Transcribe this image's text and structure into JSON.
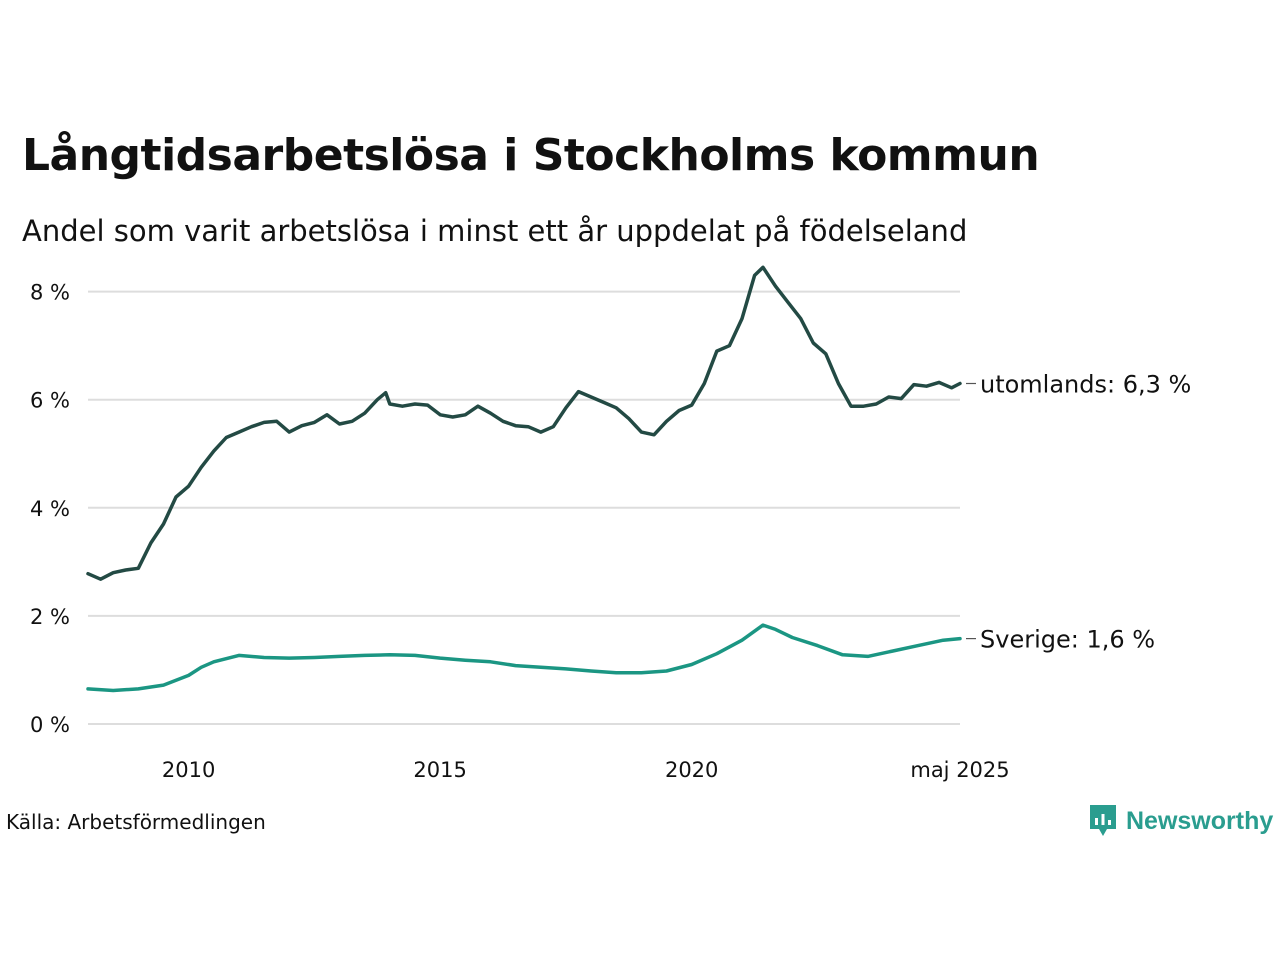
{
  "title": "Långtidsarbetslösa i Stockholms kommun",
  "subtitle": "Andel som varit arbetslösa i minst ett år uppdelat på födelseland",
  "source": "Källa: Arbetsförmedlingen",
  "logo": {
    "text": "Newsworthy",
    "icon": "newsworthy-logo-icon",
    "color": "#2a9d8f"
  },
  "chart_data": {
    "type": "line",
    "ylim": [
      0,
      8.4
    ],
    "y_ticks": [
      0,
      2,
      4,
      6,
      8
    ],
    "y_tick_labels": [
      "0 %",
      "2 %",
      "4 %",
      "6 %",
      "8 %"
    ],
    "x_range": [
      "2008-01",
      "2025-05"
    ],
    "x_ticks": [
      "2010-01",
      "2015-01",
      "2020-01",
      "2025-05"
    ],
    "x_tick_labels": [
      "2010",
      "2015",
      "2020",
      "maj 2025"
    ],
    "grid": true,
    "series": [
      {
        "name": "utomlands",
        "end_label": "utomlands: 6,3 %",
        "color": "#234a44",
        "points": [
          [
            "2008-01",
            2.78
          ],
          [
            "2008-04",
            2.68
          ],
          [
            "2008-07",
            2.8
          ],
          [
            "2008-10",
            2.85
          ],
          [
            "2009-01",
            2.88
          ],
          [
            "2009-04",
            3.35
          ],
          [
            "2009-07",
            3.7
          ],
          [
            "2009-10",
            4.2
          ],
          [
            "2010-01",
            4.4
          ],
          [
            "2010-04",
            4.75
          ],
          [
            "2010-07",
            5.05
          ],
          [
            "2010-10",
            5.3
          ],
          [
            "2011-01",
            5.4
          ],
          [
            "2011-04",
            5.5
          ],
          [
            "2011-07",
            5.58
          ],
          [
            "2011-10",
            5.6
          ],
          [
            "2012-01",
            5.4
          ],
          [
            "2012-04",
            5.52
          ],
          [
            "2012-07",
            5.58
          ],
          [
            "2012-10",
            5.72
          ],
          [
            "2013-01",
            5.55
          ],
          [
            "2013-04",
            5.6
          ],
          [
            "2013-07",
            5.75
          ],
          [
            "2013-10",
            6.0
          ],
          [
            "2013-12",
            6.13
          ],
          [
            "2014-01",
            5.92
          ],
          [
            "2014-04",
            5.88
          ],
          [
            "2014-07",
            5.92
          ],
          [
            "2014-10",
            5.9
          ],
          [
            "2015-01",
            5.72
          ],
          [
            "2015-04",
            5.68
          ],
          [
            "2015-07",
            5.72
          ],
          [
            "2015-10",
            5.88
          ],
          [
            "2016-01",
            5.75
          ],
          [
            "2016-04",
            5.6
          ],
          [
            "2016-07",
            5.52
          ],
          [
            "2016-10",
            5.5
          ],
          [
            "2017-01",
            5.4
          ],
          [
            "2017-04",
            5.5
          ],
          [
            "2017-07",
            5.85
          ],
          [
            "2017-10",
            6.15
          ],
          [
            "2018-01",
            6.05
          ],
          [
            "2018-04",
            5.95
          ],
          [
            "2018-07",
            5.85
          ],
          [
            "2018-10",
            5.65
          ],
          [
            "2019-01",
            5.4
          ],
          [
            "2019-04",
            5.35
          ],
          [
            "2019-07",
            5.6
          ],
          [
            "2019-10",
            5.8
          ],
          [
            "2020-01",
            5.9
          ],
          [
            "2020-04",
            6.3
          ],
          [
            "2020-07",
            6.9
          ],
          [
            "2020-10",
            7.0
          ],
          [
            "2021-01",
            7.5
          ],
          [
            "2021-04",
            8.3
          ],
          [
            "2021-06",
            8.45
          ],
          [
            "2021-09",
            8.1
          ],
          [
            "2021-12",
            7.8
          ],
          [
            "2022-03",
            7.5
          ],
          [
            "2022-06",
            7.05
          ],
          [
            "2022-09",
            6.85
          ],
          [
            "2022-12",
            6.3
          ],
          [
            "2023-03",
            5.88
          ],
          [
            "2023-06",
            5.88
          ],
          [
            "2023-09",
            5.92
          ],
          [
            "2023-12",
            6.05
          ],
          [
            "2024-03",
            6.02
          ],
          [
            "2024-06",
            6.28
          ],
          [
            "2024-09",
            6.25
          ],
          [
            "2024-12",
            6.32
          ],
          [
            "2025-03",
            6.22
          ],
          [
            "2025-05",
            6.3
          ]
        ]
      },
      {
        "name": "Sverige",
        "end_label": "Sverige: 1,6 %",
        "color": "#1b9683",
        "points": [
          [
            "2008-01",
            0.65
          ],
          [
            "2008-07",
            0.62
          ],
          [
            "2009-01",
            0.65
          ],
          [
            "2009-07",
            0.72
          ],
          [
            "2010-01",
            0.9
          ],
          [
            "2010-04",
            1.05
          ],
          [
            "2010-07",
            1.15
          ],
          [
            "2011-01",
            1.27
          ],
          [
            "2011-07",
            1.23
          ],
          [
            "2012-01",
            1.22
          ],
          [
            "2012-07",
            1.23
          ],
          [
            "2013-01",
            1.25
          ],
          [
            "2013-07",
            1.27
          ],
          [
            "2014-01",
            1.28
          ],
          [
            "2014-07",
            1.27
          ],
          [
            "2015-01",
            1.22
          ],
          [
            "2015-07",
            1.18
          ],
          [
            "2016-01",
            1.15
          ],
          [
            "2016-07",
            1.08
          ],
          [
            "2017-01",
            1.05
          ],
          [
            "2017-07",
            1.02
          ],
          [
            "2018-01",
            0.98
          ],
          [
            "2018-07",
            0.95
          ],
          [
            "2019-01",
            0.95
          ],
          [
            "2019-07",
            0.98
          ],
          [
            "2020-01",
            1.1
          ],
          [
            "2020-07",
            1.3
          ],
          [
            "2021-01",
            1.55
          ],
          [
            "2021-06",
            1.83
          ],
          [
            "2021-09",
            1.75
          ],
          [
            "2022-01",
            1.6
          ],
          [
            "2022-07",
            1.45
          ],
          [
            "2023-01",
            1.28
          ],
          [
            "2023-07",
            1.25
          ],
          [
            "2024-01",
            1.35
          ],
          [
            "2024-07",
            1.45
          ],
          [
            "2025-01",
            1.55
          ],
          [
            "2025-05",
            1.58
          ]
        ]
      }
    ]
  }
}
